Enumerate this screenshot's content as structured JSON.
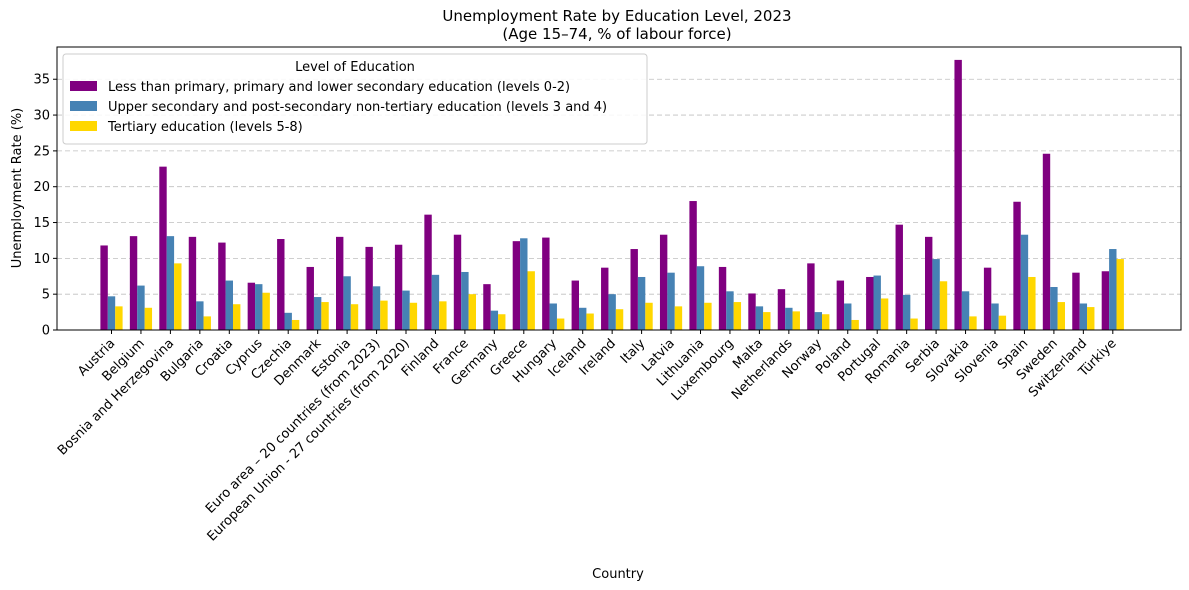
{
  "chart_data": {
    "type": "bar",
    "title": "Unemployment Rate by Education Level, 2023",
    "subtitle": "(Age 15–74, % of labour force)",
    "xlabel": "Country",
    "ylabel": "Unemployment Rate (%)",
    "ylim": [
      0,
      39.5
    ],
    "yticks": [
      0,
      5,
      10,
      15,
      20,
      25,
      30,
      35
    ],
    "grid": "y-dashed",
    "legend": {
      "title": "Level of Education",
      "placement": "upper-left"
    },
    "categories": [
      "Austria",
      "Belgium",
      "Bosnia and Herzegovina",
      "Bulgaria",
      "Croatia",
      "Cyprus",
      "Czechia",
      "Denmark",
      "Estonia",
      "Euro area – 20 countries (from 2023)",
      "European Union - 27 countries (from 2020)",
      "Finland",
      "France",
      "Germany",
      "Greece",
      "Hungary",
      "Iceland",
      "Ireland",
      "Italy",
      "Latvia",
      "Lithuania",
      "Luxembourg",
      "Malta",
      "Netherlands",
      "Norway",
      "Poland",
      "Portugal",
      "Romania",
      "Serbia",
      "Slovakia",
      "Slovenia",
      "Spain",
      "Sweden",
      "Switzerland",
      "Türkiye"
    ],
    "series": [
      {
        "name": "Less than primary, primary and lower secondary education (levels 0-2)",
        "color": "#800080",
        "values": [
          11.8,
          13.1,
          22.8,
          13.0,
          12.2,
          6.6,
          12.7,
          8.8,
          13.0,
          11.6,
          11.9,
          16.1,
          13.3,
          6.4,
          12.4,
          12.9,
          6.9,
          8.7,
          11.3,
          13.3,
          18.0,
          8.8,
          5.1,
          5.7,
          9.3,
          6.9,
          7.4,
          14.7,
          13.0,
          37.7,
          8.7,
          17.9,
          24.6,
          8.0,
          8.2
        ]
      },
      {
        "name": "Upper secondary and post-secondary non-tertiary education (levels 3 and 4)",
        "color": "#4682b4",
        "values": [
          4.7,
          6.2,
          13.1,
          4.0,
          6.9,
          6.4,
          2.4,
          4.6,
          7.5,
          6.1,
          5.5,
          7.7,
          8.1,
          2.7,
          12.8,
          3.7,
          3.1,
          5.0,
          7.4,
          8.0,
          8.9,
          5.4,
          3.3,
          3.1,
          2.5,
          3.7,
          7.6,
          4.9,
          9.9,
          5.4,
          3.7,
          13.3,
          6.0,
          3.7,
          11.3
        ]
      },
      {
        "name": "Tertiary education (levels 5-8)",
        "color": "#ffd700",
        "values": [
          3.3,
          3.1,
          9.3,
          1.9,
          3.6,
          5.2,
          1.4,
          3.9,
          3.6,
          4.1,
          3.8,
          4.0,
          5.0,
          2.2,
          8.2,
          1.6,
          2.3,
          2.9,
          3.8,
          3.3,
          3.8,
          3.9,
          2.5,
          2.6,
          2.2,
          1.4,
          4.4,
          1.6,
          6.8,
          1.9,
          2.0,
          7.4,
          3.9,
          3.2,
          9.9
        ]
      }
    ]
  }
}
